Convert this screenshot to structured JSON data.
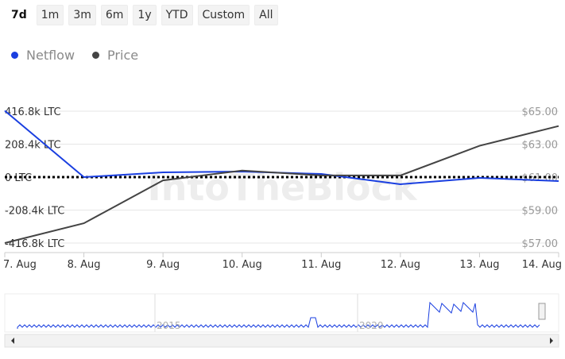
{
  "range_buttons": [
    "7d",
    "1m",
    "3m",
    "6m",
    "1y",
    "YTD",
    "Custom",
    "All"
  ],
  "active_range": "7d",
  "legend": [
    {
      "label": "Netflow",
      "color": "#1a3fe0"
    },
    {
      "label": "Price",
      "color": "#444444"
    }
  ],
  "watermark": "IntoTheBlock",
  "chart_data": {
    "type": "line",
    "x": [
      "7. Aug",
      "8. Aug",
      "9. Aug",
      "10. Aug",
      "11. Aug",
      "12. Aug",
      "13. Aug",
      "14. Aug"
    ],
    "y_left": {
      "ticks": [
        "416.8k LTC",
        "208.4k LTC",
        "0 LTC",
        "-208.4k LTC",
        "-416.8k LTC"
      ],
      "range": [
        -416.8,
        416.8
      ],
      "unit": "k LTC"
    },
    "y_right": {
      "ticks": [
        "$65.00",
        "$63.00",
        "$61.00",
        "$59.00",
        "$57.00"
      ],
      "range": [
        57,
        65
      ]
    },
    "series": [
      {
        "name": "Netflow",
        "axis": "left",
        "color": "#1a3fe0",
        "values": [
          420,
          0,
          30,
          35,
          20,
          -45,
          -5,
          -25
        ]
      },
      {
        "name": "Price",
        "axis": "right",
        "color": "#444444",
        "values": [
          57.0,
          58.2,
          60.8,
          61.4,
          61.1,
          61.1,
          62.9,
          64.1
        ]
      }
    ],
    "zero_line": true,
    "navigator": {
      "labels": [
        "2015",
        "2020"
      ]
    }
  }
}
